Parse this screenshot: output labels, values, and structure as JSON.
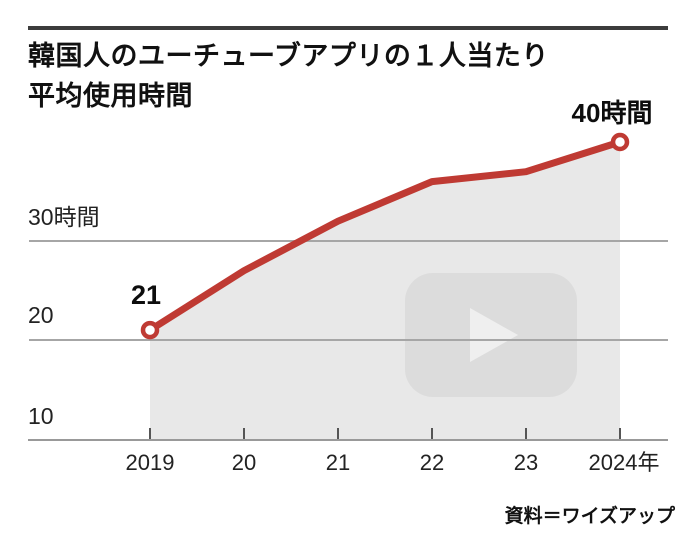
{
  "header": {
    "title_line1": "韓国人のユーチューブアプリの１人当たり",
    "title_line2": "平均使用時間"
  },
  "chart_data": {
    "type": "line",
    "title": "韓国人のユーチューブアプリの１人当たり平均使用時間",
    "categories": [
      "2019",
      "2020",
      "2021",
      "2022",
      "2023",
      "2024"
    ],
    "x_labels": [
      "2019",
      "20",
      "21",
      "22",
      "23",
      "2024年"
    ],
    "series": [
      {
        "name": "平均使用時間(時間)",
        "values": [
          21,
          27,
          32,
          36,
          37,
          40
        ]
      }
    ],
    "annotations": {
      "first": "21",
      "last": "40時間"
    },
    "y_axis": {
      "labels": [
        "30時間",
        "20",
        "10"
      ],
      "tick_values": [
        30,
        20,
        10
      ],
      "range": [
        10,
        42
      ],
      "grid": "horizontal"
    },
    "legend": "none",
    "area_fill": true,
    "marked_points": [
      "2019",
      "2024"
    ]
  },
  "watermark": {
    "icon": "youtube-play-icon"
  },
  "source": {
    "label": "資料＝ワイズアップ"
  },
  "colors": {
    "accent_red": "#bf3a33",
    "area_fill": "#e8e8e8",
    "watermark_rect": "#dcdcdc",
    "watermark_triangle": "#efefef",
    "gridline": "#a6a6a6",
    "axis_line": "#999999",
    "tick": "#555555",
    "top_rule": "#3c3c3c",
    "marker_fill": "#ffffff"
  }
}
